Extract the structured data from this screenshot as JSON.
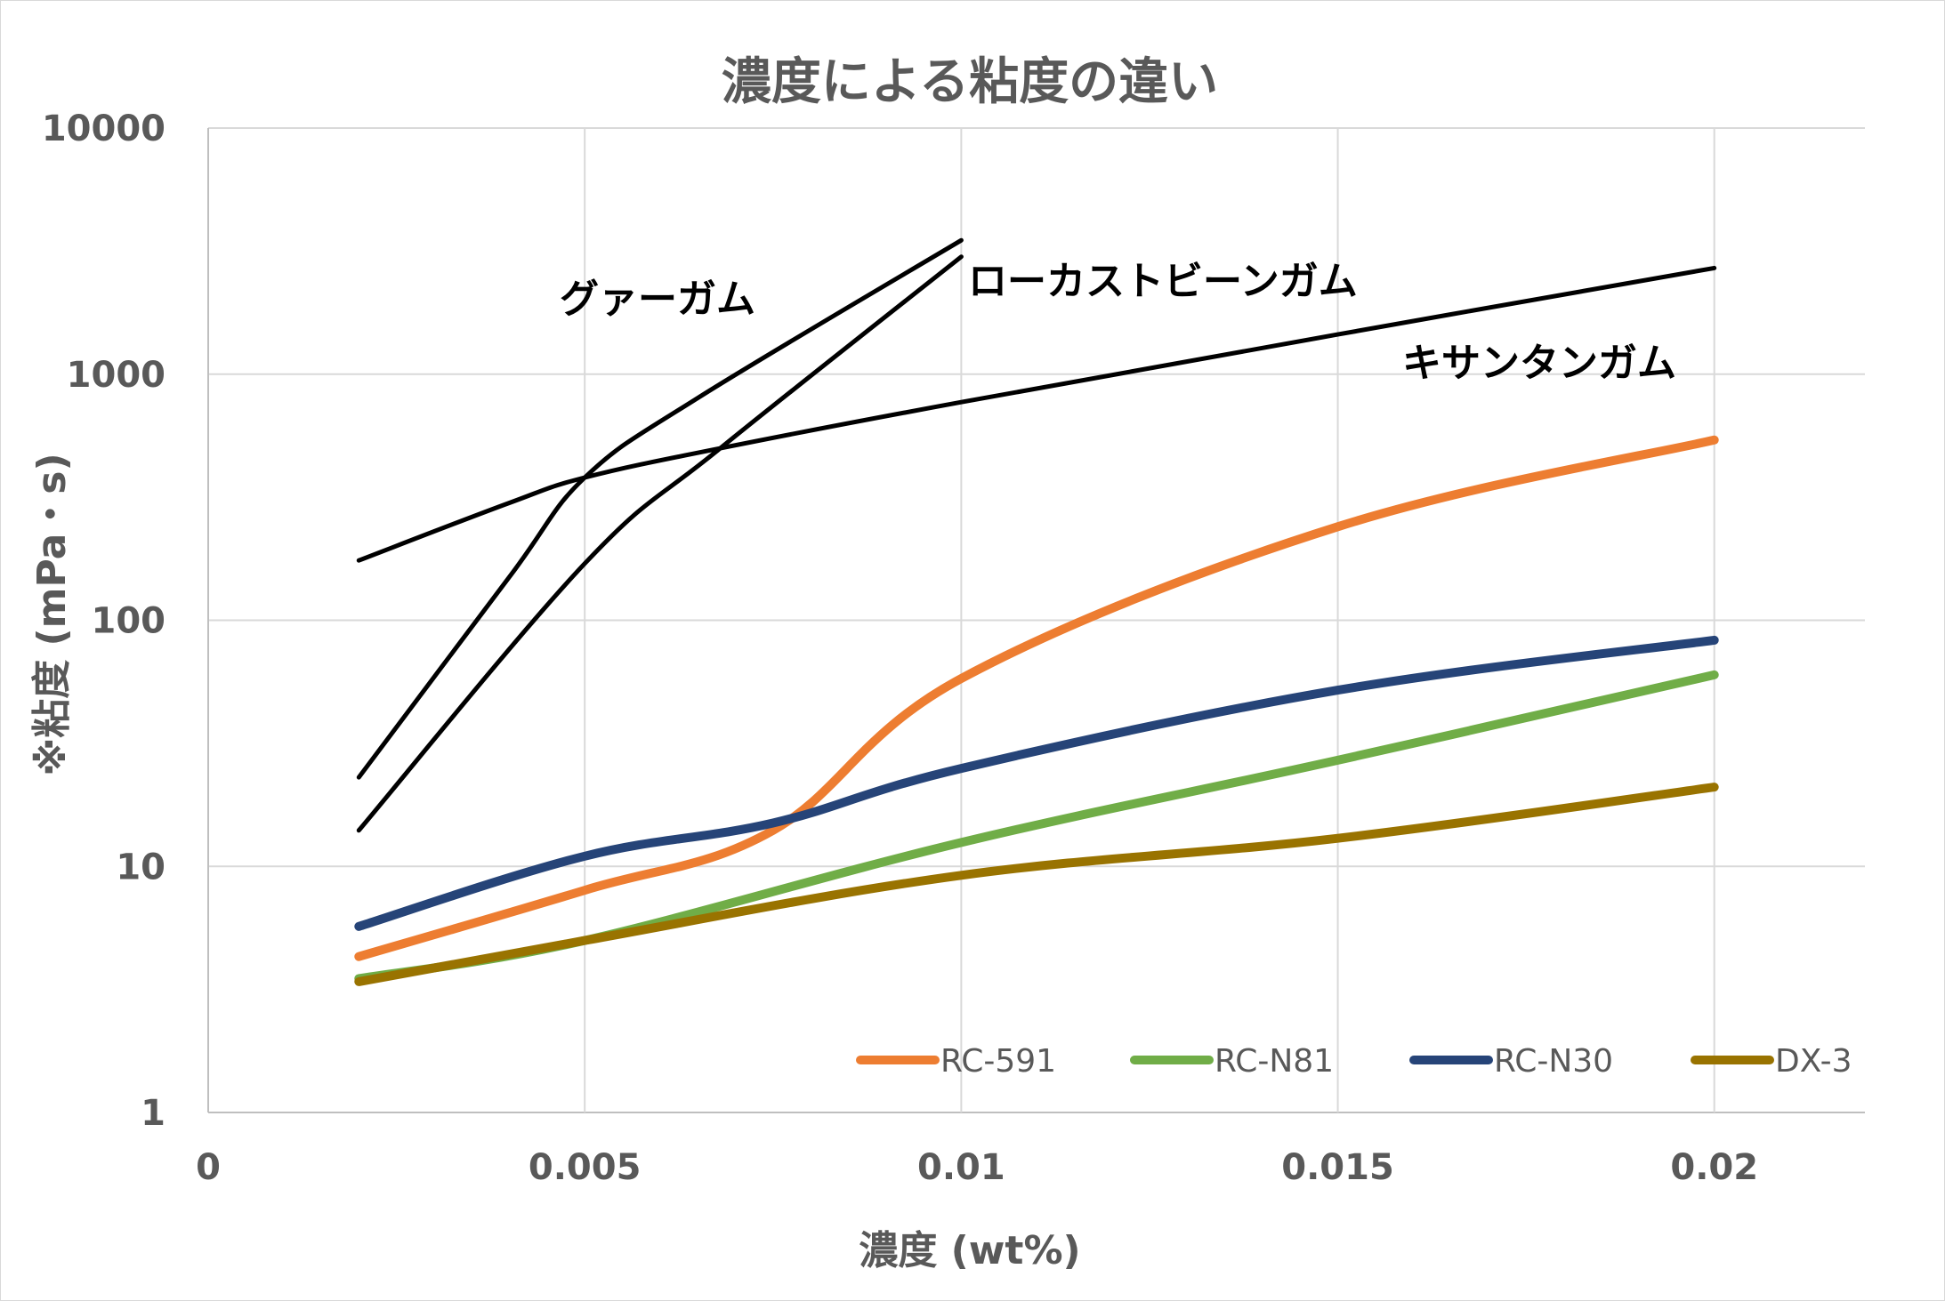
{
  "chart_data": {
    "type": "line",
    "title": "濃度による粘度の違い",
    "xlabel": "濃度 (wt%)",
    "ylabel": "※粘度 (mPa・s)",
    "x_ticks": [
      "0",
      "0.005",
      "0.01",
      "0.015",
      "0.02"
    ],
    "y_ticks": [
      "1",
      "10",
      "100",
      "1000",
      "10000"
    ],
    "xlim": [
      0,
      0.022
    ],
    "ylim": [
      1,
      10000
    ],
    "y_scale": "log",
    "grid": true,
    "legend_position": "bottom-right",
    "series": [
      {
        "name": "RC-591",
        "color": "#ED7D31",
        "in_legend": true,
        "x": [
          0.002,
          0.005,
          0.0075,
          0.01,
          0.015,
          0.02
        ],
        "values": [
          4.3,
          8.0,
          14,
          58,
          240,
          540
        ]
      },
      {
        "name": "RC-N81",
        "color": "#70AD47",
        "in_legend": true,
        "x": [
          0.002,
          0.005,
          0.01,
          0.015,
          0.02
        ],
        "values": [
          3.5,
          5.0,
          12.5,
          27,
          60
        ]
      },
      {
        "name": "RC-N30",
        "color": "#264478",
        "in_legend": true,
        "x": [
          0.002,
          0.005,
          0.0075,
          0.01,
          0.015,
          0.02
        ],
        "values": [
          5.7,
          11,
          15,
          25,
          52,
          83
        ]
      },
      {
        "name": "DX-3",
        "color": "#997300",
        "in_legend": true,
        "x": [
          0.002,
          0.005,
          0.01,
          0.015,
          0.02
        ],
        "values": [
          3.4,
          5.0,
          9.2,
          13,
          21
        ]
      },
      {
        "name": "グァーガム",
        "color": "#000000",
        "in_legend": false,
        "x": [
          0.002,
          0.004,
          0.005,
          0.0065,
          0.01
        ],
        "values": [
          23,
          150,
          380,
          800,
          3500
        ]
      },
      {
        "name": "ローカストビーンガム",
        "color": "#000000",
        "in_legend": false,
        "x": [
          0.002,
          0.005,
          0.0068,
          0.01
        ],
        "values": [
          14,
          170,
          500,
          3000
        ]
      },
      {
        "name": "キサンタンガム",
        "color": "#000000",
        "in_legend": false,
        "x": [
          0.002,
          0.004,
          0.005,
          0.0068,
          0.01,
          0.015,
          0.02
        ],
        "values": [
          175,
          300,
          380,
          500,
          770,
          1450,
          2700
        ]
      }
    ]
  }
}
